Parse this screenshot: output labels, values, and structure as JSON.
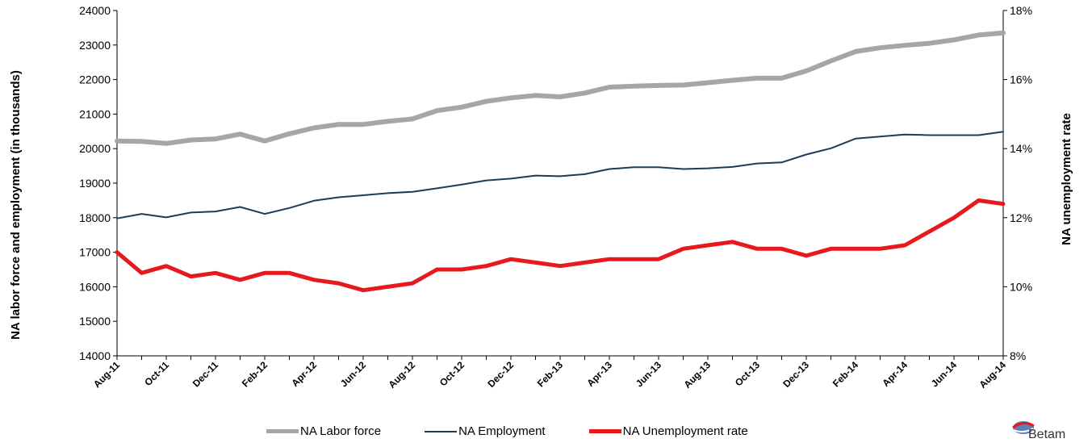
{
  "chart_data": {
    "type": "line",
    "x": [
      "Aug-11",
      "Sep-11",
      "Oct-11",
      "Nov-11",
      "Dec-11",
      "Jan-12",
      "Feb-12",
      "Mar-12",
      "Apr-12",
      "May-12",
      "Jun-12",
      "Jul-12",
      "Aug-12",
      "Sep-12",
      "Oct-12",
      "Nov-12",
      "Dec-12",
      "Jan-13",
      "Feb-13",
      "Mar-13",
      "Apr-13",
      "May-13",
      "Jun-13",
      "Jul-13",
      "Aug-13",
      "Sep-13",
      "Oct-13",
      "Nov-13",
      "Dec-13",
      "Jan-14",
      "Feb-14",
      "Mar-14",
      "Apr-14",
      "May-14",
      "Jun-14",
      "Jul-14",
      "Aug-14"
    ],
    "xtick_labels": [
      "Aug-11",
      "Oct-11",
      "Dec-11",
      "Feb-12",
      "Apr-12",
      "Jun-12",
      "Aug-12",
      "Oct-12",
      "Dec-12",
      "Feb-13",
      "Apr-13",
      "Jun-13",
      "Aug-13",
      "Oct-13",
      "Dec-13",
      "Feb-14",
      "Apr-14",
      "Jun-14",
      "Aug-14"
    ],
    "ylabel": "NA labor force and employment (in thousands)",
    "y2label": "NA unemployment rate",
    "ylim": [
      14000,
      24000
    ],
    "yticks": [
      14000,
      15000,
      16000,
      17000,
      18000,
      19000,
      20000,
      21000,
      22000,
      23000,
      24000
    ],
    "y2lim": [
      8,
      18
    ],
    "y2ticks": [
      "8%",
      "10%",
      "12%",
      "14%",
      "16%",
      "18%"
    ],
    "grid": false,
    "legend_position": "bottom",
    "series": [
      {
        "name": "NA Labor force",
        "axis": "left",
        "color": "#a6a6a6",
        "values": [
          20220,
          20210,
          20150,
          20250,
          20280,
          20420,
          20220,
          20430,
          20600,
          20700,
          20700,
          20790,
          20860,
          21100,
          21200,
          21370,
          21470,
          21540,
          21500,
          21610,
          21780,
          21810,
          21830,
          21840,
          21910,
          21980,
          22040,
          22040,
          22250,
          22540,
          22810,
          22920,
          22990,
          23050,
          23150,
          23290,
          23350
        ]
      },
      {
        "name": "NA Employment",
        "axis": "left",
        "color": "#1f3b5a",
        "values": [
          17980,
          18110,
          18010,
          18150,
          18180,
          18310,
          18110,
          18280,
          18490,
          18590,
          18650,
          18710,
          18750,
          18850,
          18960,
          19080,
          19130,
          19220,
          19200,
          19260,
          19410,
          19460,
          19460,
          19410,
          19430,
          19470,
          19570,
          19600,
          19830,
          20010,
          20290,
          20350,
          20410,
          20390,
          20390,
          20390,
          20490
        ]
      },
      {
        "name": "NA Unemployment rate",
        "axis": "right",
        "color": "#e8191d",
        "values": [
          11.0,
          10.4,
          10.6,
          10.3,
          10.4,
          10.2,
          10.4,
          10.4,
          10.2,
          10.1,
          9.9,
          10.0,
          10.1,
          10.5,
          10.5,
          10.6,
          10.8,
          10.7,
          10.6,
          10.7,
          10.8,
          10.8,
          10.8,
          11.1,
          11.2,
          11.3,
          11.1,
          11.1,
          10.9,
          11.1,
          11.1,
          11.1,
          11.2,
          11.6,
          12.0,
          12.5,
          12.4
        ]
      }
    ]
  },
  "legend": {
    "labor_force": "NA Labor force",
    "employment": "NA Employment",
    "unemployment_rate": "NA Unemployment rate"
  },
  "logo": {
    "text": "Betam"
  }
}
